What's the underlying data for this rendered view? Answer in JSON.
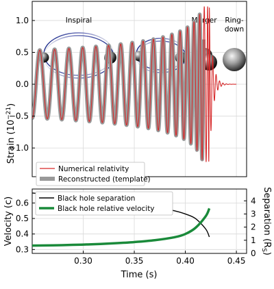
{
  "phases": {
    "inspiral": "Inspiral",
    "merger": "Merger",
    "ringdown_1": "Ring-",
    "ringdown_2": "down"
  },
  "chart_data": [
    {
      "id": "strain",
      "type": "line",
      "ylabel": "Strain (10",
      "ylabel_exp": "−21",
      "ylabel_end": ")",
      "xlim": [
        0.25,
        0.46
      ],
      "ylim": [
        -1.45,
        1.3
      ],
      "yticks": [
        {
          "value": 1.0,
          "label": "1.0"
        },
        {
          "value": 0.5,
          "label": "0.5"
        },
        {
          "value": 0.0,
          "label": "0.0"
        },
        {
          "value": -0.5,
          "label": "−0.5"
        },
        {
          "value": -1.0,
          "label": "−1.0"
        }
      ],
      "grid": true,
      "legend_placement": "bottom-left",
      "series": [
        {
          "name": "Numerical relativity",
          "color": "#d62728"
        },
        {
          "name": "Reconstructed (template)",
          "color": "#999999"
        }
      ],
      "waveform": {
        "t_start": 0.25,
        "t_merge": 0.4235,
        "t_end": 0.45,
        "phase_at_start": 0.5,
        "amplitude_start": 0.53,
        "peak_strain": 1.22,
        "template_end": 0.418,
        "ringdown_tau": 0.0032,
        "ringdown_freq": 300
      }
    },
    {
      "id": "velocity",
      "type": "line",
      "xlabel": "Time (s)",
      "ylabel": "Velocity (c)",
      "ylabel_right": "Separation (R",
      "ylabel_right_sub": "S",
      "ylabel_right_end": ")",
      "xlim": [
        0.25,
        0.46
      ],
      "ylim": [
        0.275,
        0.69
      ],
      "ylim_right": [
        0,
        4.9
      ],
      "xticks": [
        {
          "value": 0.3,
          "label": "0.30"
        },
        {
          "value": 0.35,
          "label": "0.35"
        },
        {
          "value": 0.4,
          "label": "0.40"
        },
        {
          "value": 0.45,
          "label": "0.45"
        }
      ],
      "yticks": [
        {
          "value": 0.6,
          "label": "0.6"
        },
        {
          "value": 0.5,
          "label": "0.5"
        },
        {
          "value": 0.4,
          "label": "0.4"
        },
        {
          "value": 0.3,
          "label": "0.3"
        }
      ],
      "yticks_right": [
        {
          "value": 4,
          "label": "4"
        },
        {
          "value": 3,
          "label": "3"
        },
        {
          "value": 2,
          "label": "2"
        },
        {
          "value": 1,
          "label": "1"
        },
        {
          "value": 0,
          "label": "0"
        }
      ],
      "grid": true,
      "legend_placement": "top-left",
      "series": [
        {
          "name": "Black hole separation",
          "axis": "right",
          "color": "#000000",
          "x": [
            0.25,
            0.27,
            0.29,
            0.31,
            0.33,
            0.35,
            0.37,
            0.39,
            0.4,
            0.41,
            0.42,
            0.4235
          ],
          "y": [
            4.6,
            4.45,
            4.3,
            4.15,
            3.98,
            3.8,
            3.55,
            3.23,
            3.0,
            2.65,
            1.85,
            1.25
          ]
        },
        {
          "name": "Black hole relative velocity",
          "axis": "left",
          "color": "#1a8a3a",
          "x": [
            0.25,
            0.27,
            0.29,
            0.31,
            0.33,
            0.35,
            0.37,
            0.39,
            0.4,
            0.41,
            0.42,
            0.4235
          ],
          "y": [
            0.325,
            0.327,
            0.33,
            0.334,
            0.34,
            0.348,
            0.36,
            0.38,
            0.4,
            0.44,
            0.515,
            0.565
          ]
        }
      ]
    }
  ]
}
